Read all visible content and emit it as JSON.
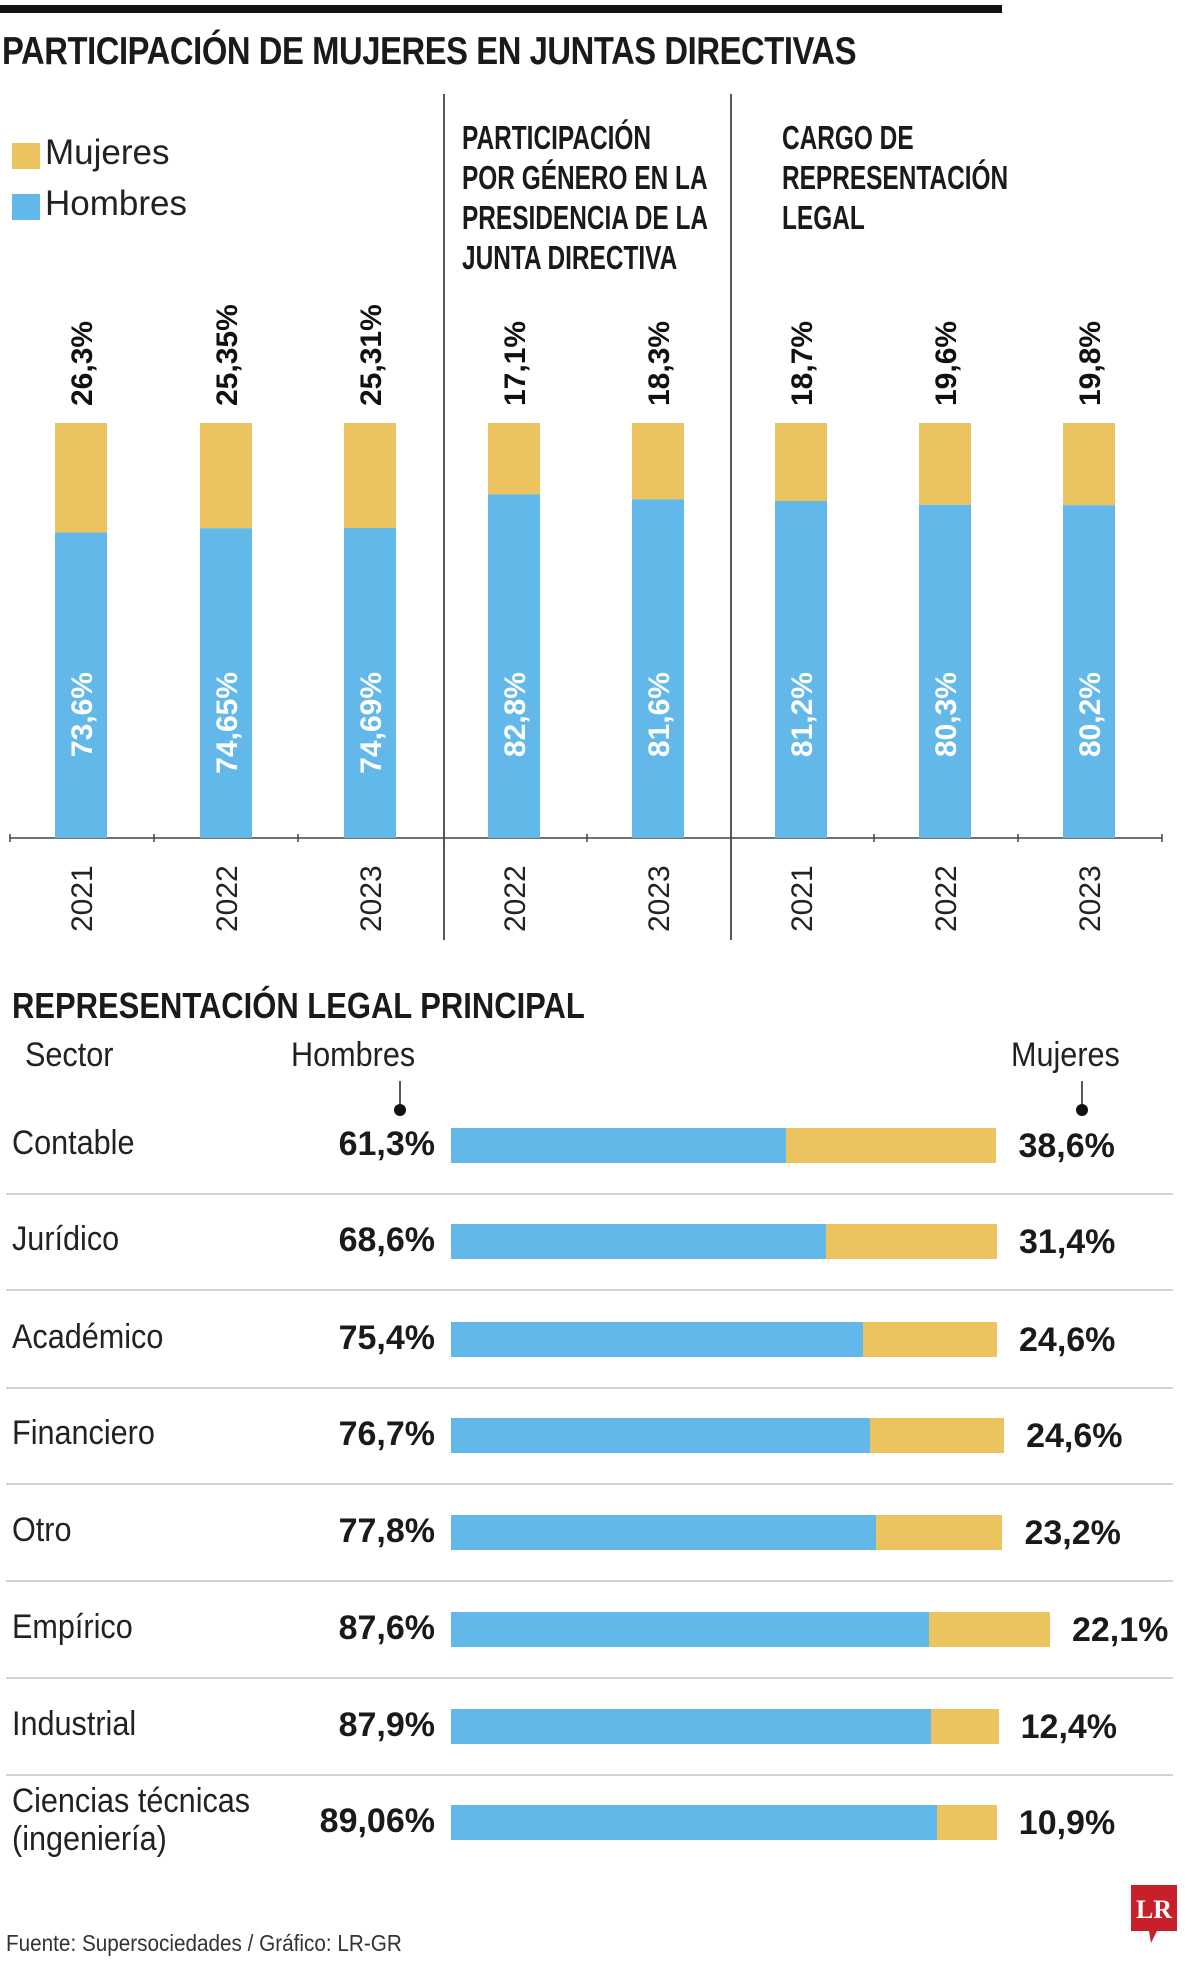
{
  "title": "PARTICIPACIÓN DE MUJERES EN JUNTAS DIRECTIVAS",
  "colors": {
    "mujeres": "#ebc35f",
    "hombres": "#62b8e8",
    "logo": "#c8202a"
  },
  "legend": [
    {
      "label": "Mujeres",
      "color": "#ebc35f"
    },
    {
      "label": "Hombres",
      "color": "#62b8e8"
    }
  ],
  "chart_data": [
    {
      "type": "bar",
      "stacked": true,
      "orientation": "vertical",
      "groups": [
        {
          "title": "",
          "categories": [
            "2021",
            "2022",
            "2023"
          ],
          "hombres": [
            73.6,
            74.65,
            74.69
          ],
          "mujeres": [
            26.3,
            25.35,
            25.31
          ],
          "hombres_labels": [
            "73,6%",
            "74,65%",
            "74,69%"
          ],
          "mujeres_labels": [
            "26,3%",
            "25,35%",
            "25,31%"
          ]
        },
        {
          "title": "PARTICIPACIÓN POR GÉNERO EN LA PRESIDENCIA DE LA JUNTA DIRECTIVA",
          "title_lines": [
            "PARTICIPACIÓN",
            "POR GÉNERO EN LA",
            "PRESIDENCIA DE LA",
            "JUNTA DIRECTIVA"
          ],
          "categories": [
            "2022",
            "2023"
          ],
          "hombres": [
            82.8,
            81.6
          ],
          "mujeres": [
            17.1,
            18.3
          ],
          "hombres_labels": [
            "82,8%",
            "81,6%"
          ],
          "mujeres_labels": [
            "17,1%",
            "18,3%"
          ]
        },
        {
          "title": "CARGO DE REPRESENTACIÓN LEGAL",
          "title_lines": [
            "CARGO DE",
            "REPRESENTACIÓN",
            "LEGAL"
          ],
          "categories": [
            "2021",
            "2022",
            "2023"
          ],
          "hombres": [
            81.2,
            80.3,
            80.2
          ],
          "mujeres": [
            18.7,
            19.6,
            19.8
          ],
          "hombres_labels": [
            "81,2%",
            "80,3%",
            "80,2%"
          ],
          "mujeres_labels": [
            "18,7%",
            "19,6%",
            "19,8%"
          ]
        }
      ],
      "series": [
        {
          "name": "Hombres"
        },
        {
          "name": "Mujeres"
        }
      ],
      "ylim": [
        0,
        100
      ],
      "grid": false,
      "legend_position": "top-left"
    },
    {
      "type": "bar",
      "stacked": true,
      "orientation": "horizontal",
      "title": "REPRESENTACIÓN LEGAL PRINCIPAL",
      "headers": {
        "sector": "Sector",
        "hombres": "Hombres",
        "mujeres": "Mujeres"
      },
      "categories": [
        "Contable",
        "Jurídico",
        "Académico",
        "Financiero",
        "Otro",
        "Empírico",
        "Industrial",
        "Ciencias técnicas (ingeniería)"
      ],
      "category_lines": [
        [
          "Contable"
        ],
        [
          "Jurídico"
        ],
        [
          "Académico"
        ],
        [
          "Financiero"
        ],
        [
          "Otro"
        ],
        [
          "Empírico"
        ],
        [
          "Industrial"
        ],
        [
          "Ciencias técnicas",
          "(ingeniería)"
        ]
      ],
      "series": [
        {
          "name": "Hombres",
          "values": [
            61.3,
            68.6,
            75.4,
            76.7,
            77.8,
            87.6,
            87.9,
            89.06
          ],
          "labels": [
            "61,3%",
            "68,6%",
            "75,4%",
            "76,7%",
            "77,8%",
            "87,6%",
            "87,9%",
            "89,06%"
          ]
        },
        {
          "name": "Mujeres",
          "values": [
            38.6,
            31.4,
            24.6,
            24.6,
            23.2,
            22.1,
            12.4,
            10.9
          ],
          "labels": [
            "38,6%",
            "31,4%",
            "24,6%",
            "24,6%",
            "23,2%",
            "22,1%",
            "12,4%",
            "10,9%"
          ]
        }
      ]
    }
  ],
  "footer": {
    "source": "Fuente: Supersociedades / Gráfico: LR-GR",
    "logo_text": "LR"
  }
}
